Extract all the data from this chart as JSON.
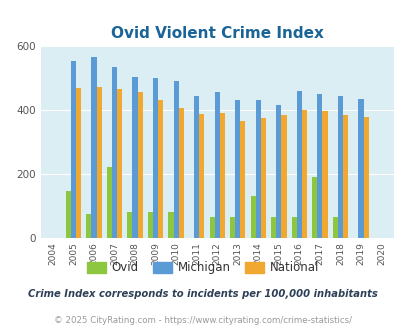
{
  "title": "Ovid Violent Crime Index",
  "years": [
    2004,
    2005,
    2006,
    2007,
    2008,
    2009,
    2010,
    2011,
    2012,
    2013,
    2014,
    2015,
    2016,
    2017,
    2018,
    2019,
    2020
  ],
  "ovid": [
    0,
    145,
    75,
    220,
    80,
    80,
    80,
    0,
    65,
    65,
    130,
    65,
    65,
    190,
    65,
    0,
    0
  ],
  "michigan": [
    0,
    555,
    565,
    535,
    502,
    500,
    492,
    445,
    455,
    430,
    430,
    415,
    460,
    450,
    445,
    435,
    0
  ],
  "national": [
    0,
    468,
    472,
    465,
    455,
    430,
    405,
    388,
    390,
    367,
    375,
    383,
    400,
    397,
    383,
    379,
    0
  ],
  "ovid_color": "#8dc63f",
  "michigan_color": "#5b9bd5",
  "national_color": "#f0a830",
  "bg_color": "#daeef3",
  "ylim": [
    0,
    600
  ],
  "yticks": [
    0,
    200,
    400,
    600
  ],
  "legend_labels": [
    "Ovid",
    "Michigan",
    "National"
  ],
  "footnote1": "Crime Index corresponds to incidents per 100,000 inhabitants",
  "footnote2": "© 2025 CityRating.com - https://www.cityrating.com/crime-statistics/",
  "title_color": "#1a6496",
  "footnote1_color": "#2e4057",
  "footnote2_color": "#999999"
}
